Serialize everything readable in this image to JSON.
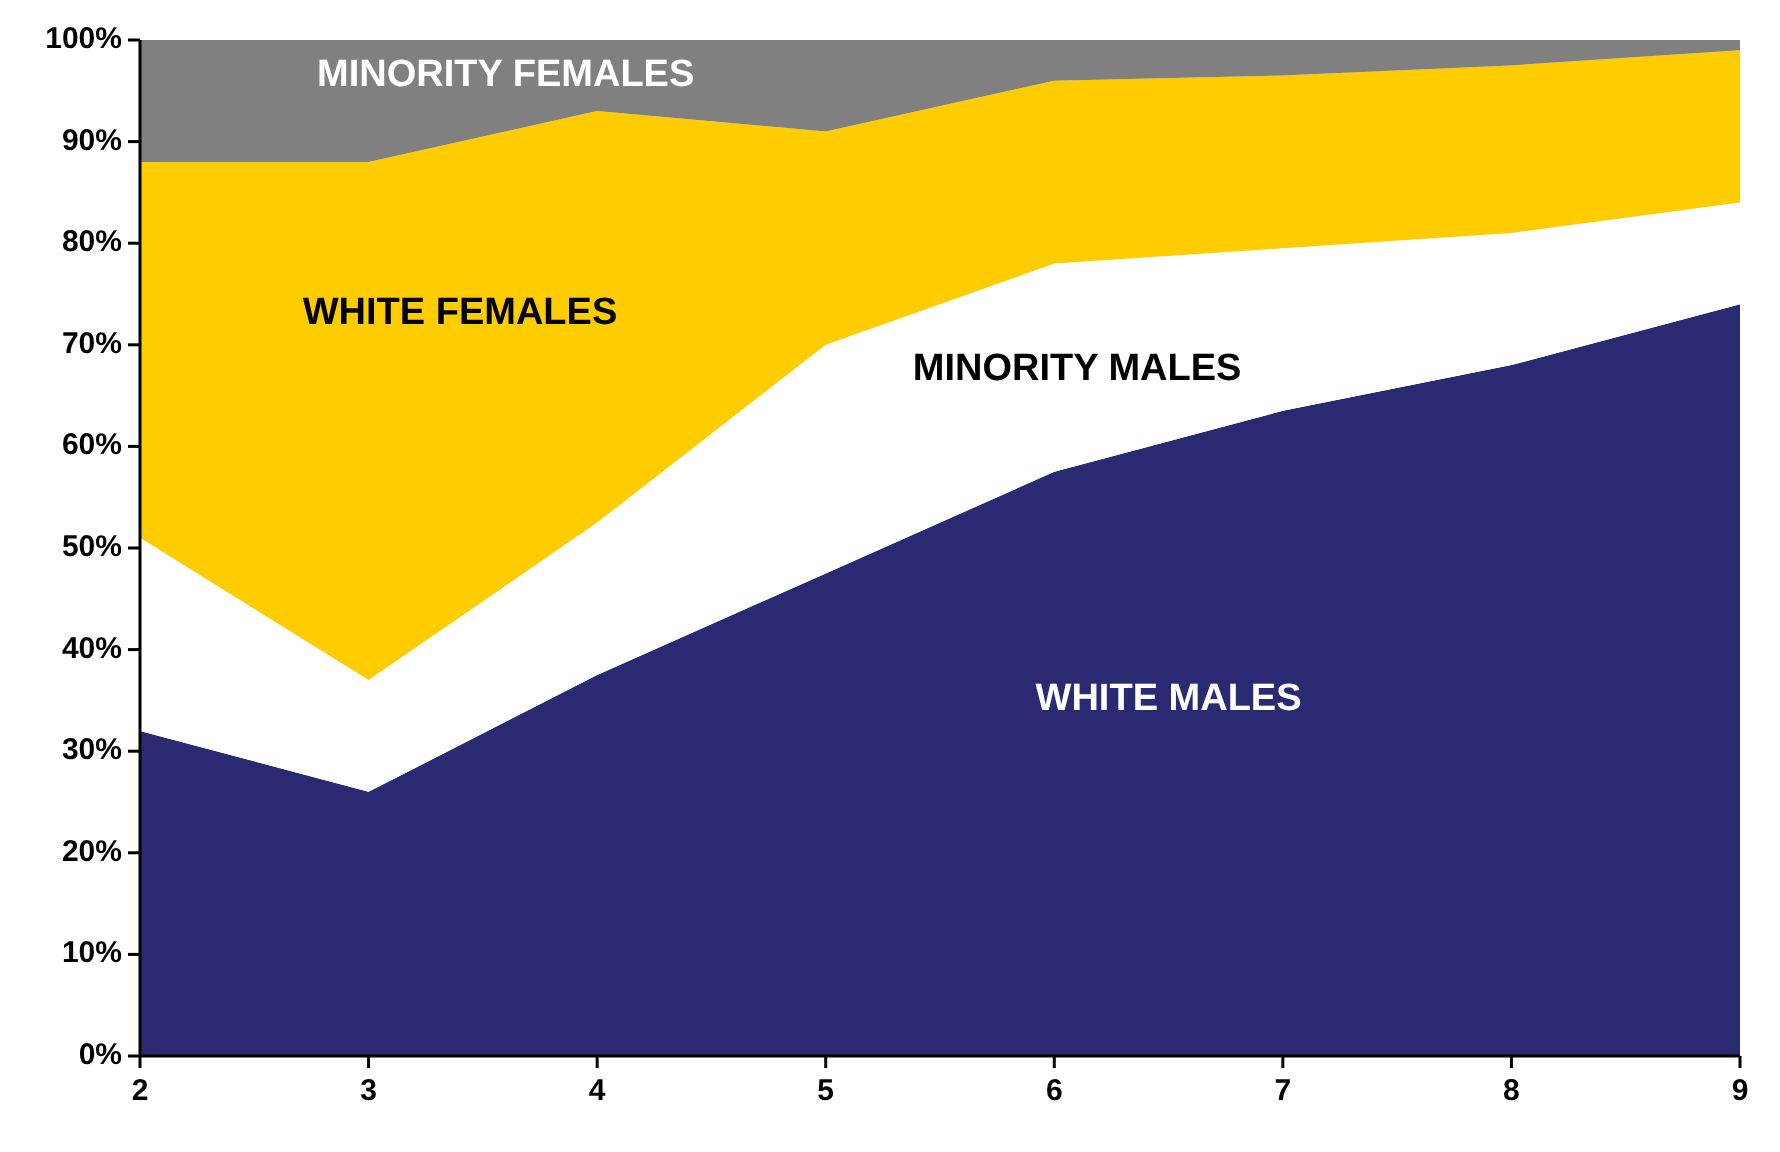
{
  "chart_data": {
    "type": "area",
    "stacked": true,
    "x": [
      2,
      3,
      4,
      5,
      6,
      7,
      8,
      9
    ],
    "series": [
      {
        "name": "WHITE MALES",
        "color": "#292a72",
        "values": [
          32,
          26,
          37.5,
          47.5,
          57.5,
          63.5,
          68,
          74
        ]
      },
      {
        "name": "MINORITY MALES",
        "color": "#ffffff",
        "values": [
          19,
          11,
          15,
          22.5,
          20.5,
          16,
          13,
          10
        ]
      },
      {
        "name": "WHITE FEMALES",
        "color": "#ffcc00",
        "values": [
          37,
          51,
          40.5,
          21,
          18,
          17,
          16.5,
          15
        ]
      },
      {
        "name": "MINORITY FEMALES",
        "color": "#808080",
        "values": [
          12,
          12,
          7,
          9,
          4,
          3.5,
          2.5,
          1
        ]
      }
    ],
    "xlim": [
      2,
      9
    ],
    "xticks": [
      2,
      3,
      4,
      5,
      6,
      7,
      8,
      9
    ],
    "ylim": [
      0,
      100
    ],
    "yticks": [
      {
        "value": 0,
        "label": "0%"
      },
      {
        "value": 10,
        "label": "10%"
      },
      {
        "value": 20,
        "label": "20%"
      },
      {
        "value": 30,
        "label": "30%"
      },
      {
        "value": 40,
        "label": "40%"
      },
      {
        "value": 50,
        "label": "50%"
      },
      {
        "value": 60,
        "label": "60%"
      },
      {
        "value": 70,
        "label": "70%"
      },
      {
        "value": 80,
        "label": "80%"
      },
      {
        "value": 90,
        "label": "90%"
      },
      {
        "value": 100,
        "label": "100%"
      }
    ],
    "grid": false,
    "legend": false
  }
}
